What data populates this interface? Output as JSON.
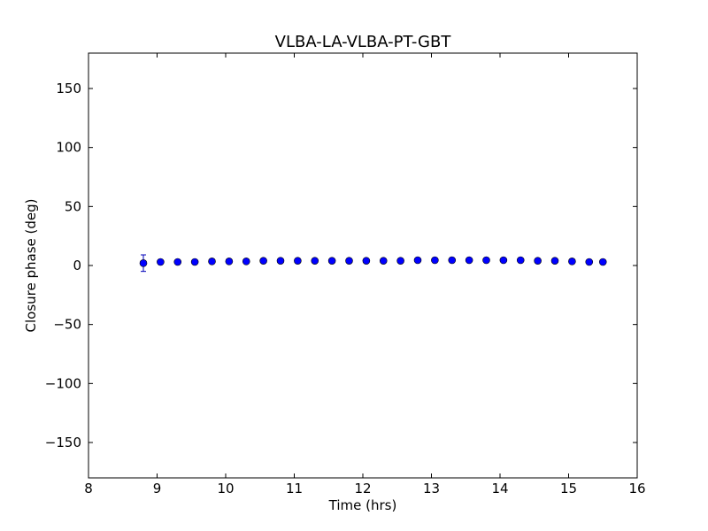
{
  "chart_data": {
    "type": "scatter",
    "title": "VLBA-LA-VLBA-PT-GBT",
    "xlabel": "Time (hrs)",
    "ylabel": "Closure phase (deg)",
    "xlim": [
      8,
      16
    ],
    "ylim": [
      -180,
      180
    ],
    "xticks": [
      8,
      9,
      10,
      11,
      12,
      13,
      14,
      15,
      16
    ],
    "xtick_labels": [
      "8",
      "9",
      "10",
      "11",
      "12",
      "13",
      "14",
      "15",
      "16"
    ],
    "yticks": [
      -150,
      -100,
      -50,
      0,
      50,
      100,
      150
    ],
    "ytick_labels": [
      "−150",
      "−100",
      "−50",
      "0",
      "50",
      "100",
      "150"
    ],
    "grid": false,
    "legend": "none",
    "marker_color": "#0000ff",
    "errorbar_color": "#0000b8",
    "x": [
      8.8,
      9.05,
      9.3,
      9.55,
      9.8,
      10.05,
      10.3,
      10.55,
      10.8,
      11.05,
      11.3,
      11.55,
      11.8,
      12.05,
      12.3,
      12.55,
      12.8,
      13.05,
      13.3,
      13.55,
      13.8,
      14.05,
      14.3,
      14.55,
      14.8,
      15.05,
      15.3,
      15.5
    ],
    "y": [
      2,
      3,
      3,
      3,
      3.5,
      3.5,
      3.5,
      4,
      4,
      4,
      4,
      4,
      4,
      4,
      4,
      4,
      4.5,
      4.5,
      4.5,
      4.5,
      4.5,
      4.5,
      4.5,
      4,
      4,
      3.5,
      3,
      3
    ],
    "yerr": [
      7,
      1,
      1,
      1,
      1,
      1,
      1,
      1,
      1,
      1,
      1,
      1,
      1,
      1,
      1,
      1,
      1,
      1,
      1,
      1,
      1,
      1,
      1,
      1,
      1,
      1,
      1,
      1
    ]
  }
}
